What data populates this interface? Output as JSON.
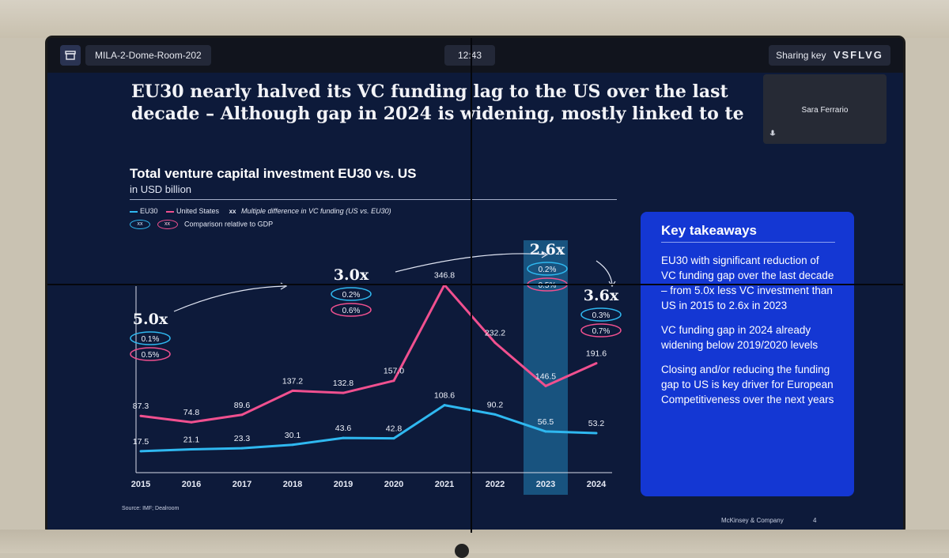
{
  "meeting": {
    "room_name": "MILA-2-Dome-Room-202",
    "clock": "12:43",
    "sharing_label": "Sharing key",
    "sharing_key": "VSFLVG",
    "presenter_name": "Sara Ferrario"
  },
  "slide": {
    "title_line1": "EU30 nearly halved its VC funding lag to the US over the last",
    "title_line2": "decade – Although gap in 2024 is widening, mostly linked to te",
    "source": "Source: IMF; Dealroom",
    "brand": "McKinsey & Company",
    "page_number": "4",
    "takeaways": {
      "heading": "Key takeaways",
      "points": [
        "EU30 with significant reduction of VC funding gap over the last decade – from 5.0x less VC investment than US in 2015 to 2.6x in 2023",
        "VC funding gap in 2024 already widening below 2019/2020 levels",
        "Closing and/or reducing the funding gap to US is key driver for European Competitiveness over the next years"
      ]
    }
  },
  "chart_data": {
    "type": "line",
    "title": "Total venture capital investment EU30 vs. US",
    "subtitle": "in USD billion",
    "legend": {
      "eu30": "EU30",
      "us": "United States",
      "multiple_marker": "xx",
      "multiple_label": "Multiple difference in VC funding (US vs. EU30)",
      "gdp_marker": "xx",
      "gdp_label": "Comparison relative to GDP"
    },
    "categories": [
      "2015",
      "2016",
      "2017",
      "2018",
      "2019",
      "2020",
      "2021",
      "2022",
      "2023",
      "2024"
    ],
    "series": [
      {
        "name": "EU30",
        "color": "#2fb8f0",
        "values": [
          17.5,
          21.1,
          23.3,
          30.1,
          43.6,
          42.8,
          108.6,
          90.2,
          56.5,
          53.2
        ]
      },
      {
        "name": "United States",
        "color": "#f0508f",
        "values": [
          87.3,
          74.8,
          89.6,
          137.2,
          132.8,
          157.0,
          346.8,
          232.2,
          146.5,
          191.6
        ]
      }
    ],
    "value_labels": {
      "EU30": [
        "17.5",
        "21.1",
        "23.3",
        "30.1",
        "43.6",
        "42.8",
        "108.6",
        "90.2",
        "56.5",
        "53.2"
      ],
      "United States": [
        "87.3",
        "74.8",
        "89.6",
        "137.2",
        "132.8",
        "157.0",
        "346.8",
        "232.2",
        "146.5",
        "191.6"
      ]
    },
    "highlight_category": "2023",
    "callouts": [
      {
        "year": "2015",
        "multiple": "5.0x",
        "eu30_gdp": "0.1%",
        "us_gdp": "0.5%"
      },
      {
        "year": "2019",
        "multiple": "3.0x",
        "eu30_gdp": "0.2%",
        "us_gdp": "0.6%"
      },
      {
        "year": "2023",
        "multiple": "2.6x",
        "eu30_gdp": "0.2%",
        "us_gdp": "0.5%"
      },
      {
        "year": "2024",
        "multiple": "3.6x",
        "eu30_gdp": "0.3%",
        "us_gdp": "0.7%"
      }
    ],
    "ylim": [
      0,
      360
    ]
  }
}
